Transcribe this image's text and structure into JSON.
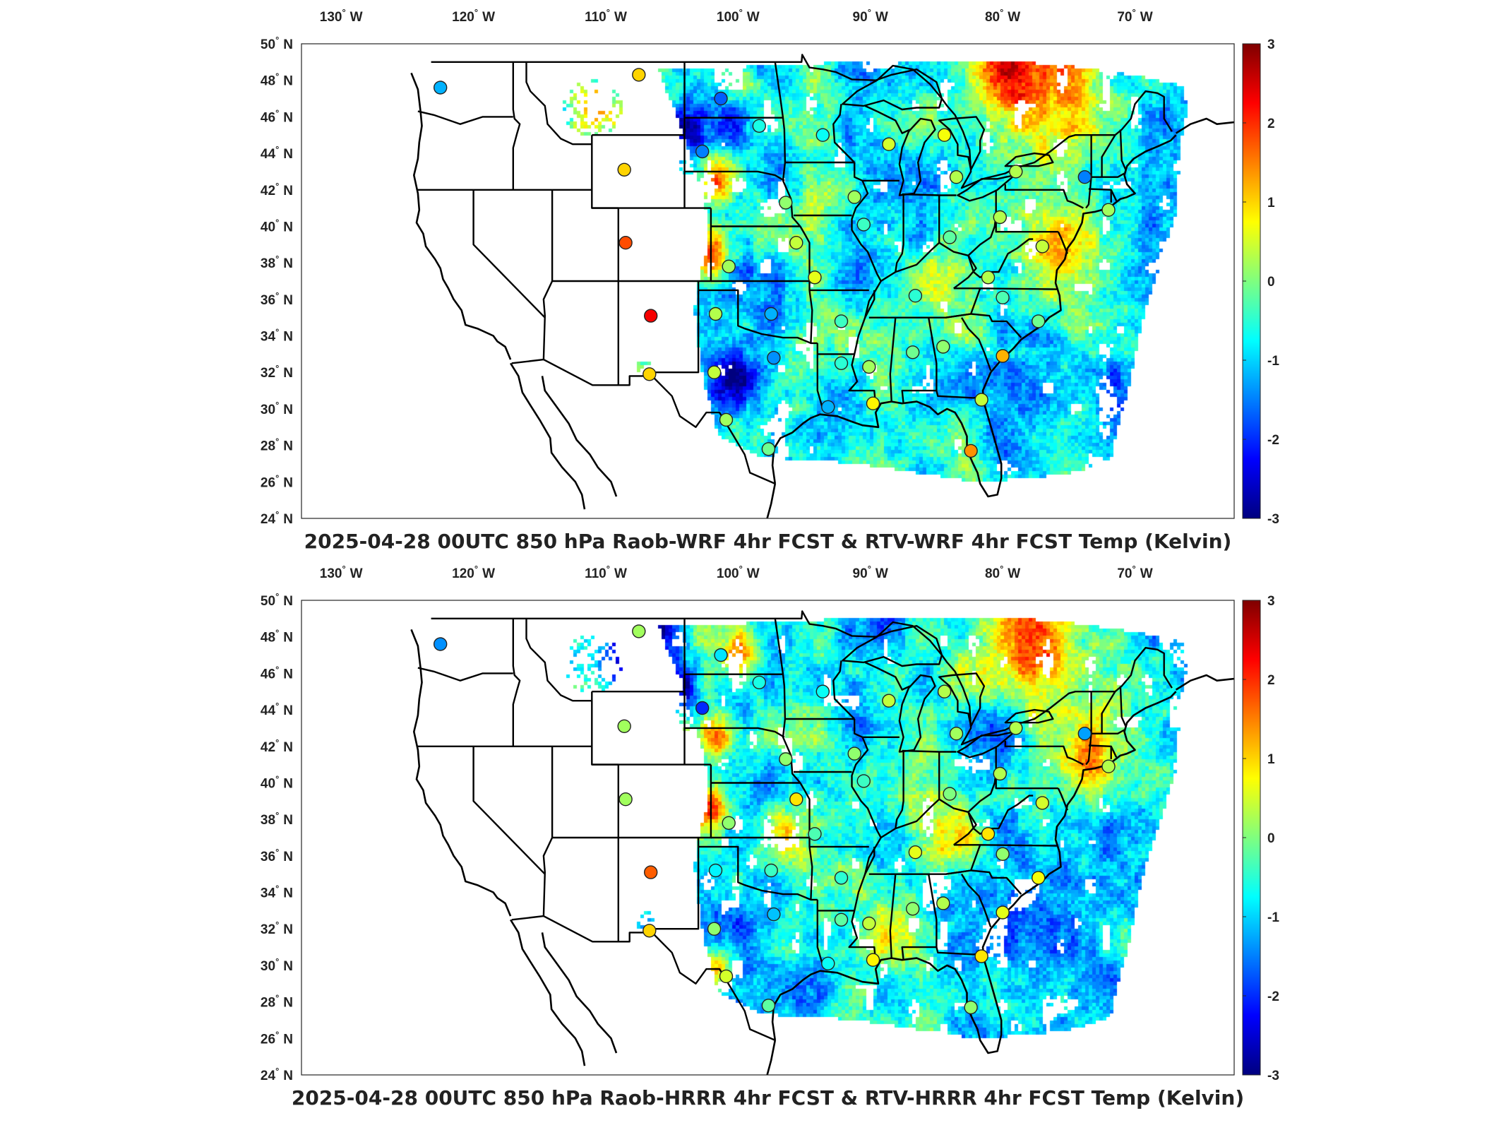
{
  "colors": {
    "scale": [
      "#00007f",
      "#0000ff",
      "#007fff",
      "#00ffff",
      "#7fff7f",
      "#ffff00",
      "#ff7f00",
      "#ff0000",
      "#7f0000"
    ],
    "background": "#ffffff",
    "borders": "#000000"
  },
  "axes": {
    "lon_labels": [
      "130",
      "120",
      "110",
      "100",
      "90",
      "80",
      "70"
    ],
    "lon_values": [
      -130,
      -120,
      -110,
      -100,
      -90,
      -80,
      -70
    ],
    "lon_hemisphere": "W",
    "lat_labels": [
      "50",
      "48",
      "46",
      "44",
      "42",
      "40",
      "38",
      "36",
      "34",
      "32",
      "30",
      "28",
      "26",
      "24"
    ],
    "lat_values": [
      50,
      48,
      46,
      44,
      42,
      40,
      38,
      36,
      34,
      32,
      30,
      28,
      26,
      24
    ],
    "lat_hemisphere": "N",
    "degree_symbol": "°"
  },
  "colorbar": {
    "min": -3,
    "max": 3,
    "ticks": [
      "3",
      "2",
      "1",
      "0",
      "-1",
      "-2",
      "-3"
    ],
    "tick_values": [
      3,
      2,
      1,
      0,
      -1,
      -2,
      -3
    ]
  },
  "panels": [
    {
      "title": "2025-04-28 00UTC 850 hPa Raob-WRF 4hr FCST & RTV-WRF 4hr FCST Temp (Kelvin)",
      "warm_regions": [
        {
          "lon": -78,
          "lat": 48.3,
          "r": 4.5,
          "v": 2.6
        },
        {
          "lon": -111,
          "lat": 46.5,
          "r": 1.6,
          "v": 2.0
        },
        {
          "lon": -102,
          "lat": 38.5,
          "r": 1.4,
          "v": 2.2
        },
        {
          "lon": -101.5,
          "lat": 42.5,
          "r": 1.2,
          "v": 1.8
        },
        {
          "lon": -100,
          "lat": 47.5,
          "r": 1.5,
          "v": 1.4
        },
        {
          "lon": -75,
          "lat": 38.2,
          "r": 2.5,
          "v": 1.0
        },
        {
          "lon": -84,
          "lat": 37.2,
          "r": 2.5,
          "v": 0.6
        },
        {
          "lon": -93.5,
          "lat": 40.5,
          "r": 3,
          "v": 0.3
        }
      ],
      "cool_regions": [
        {
          "lon": -101,
          "lat": 31.5,
          "r": 2.5,
          "v": -1.8
        },
        {
          "lon": -104,
          "lat": 45.3,
          "r": 1.4,
          "v": -2.4
        },
        {
          "lon": -100.5,
          "lat": 46.5,
          "r": 1.4,
          "v": -1.4
        },
        {
          "lon": -93,
          "lat": 29.2,
          "r": 2.2,
          "v": -1.6
        },
        {
          "lon": -75,
          "lat": 30,
          "r": 4.5,
          "v": -1.0
        },
        {
          "lon": -91,
          "lat": 44,
          "r": 2.5,
          "v": -1.0
        }
      ],
      "stations": [
        {
          "lon": -122.5,
          "lat": 47.6,
          "v": -1.2
        },
        {
          "lon": -107.5,
          "lat": 48.3,
          "v": 1.0
        },
        {
          "lon": -101.3,
          "lat": 47.0,
          "v": -1.7
        },
        {
          "lon": -98.4,
          "lat": 45.5,
          "v": -0.6
        },
        {
          "lon": -93.6,
          "lat": 45.0,
          "v": -0.7
        },
        {
          "lon": -102.7,
          "lat": 44.1,
          "v": -1.5
        },
        {
          "lon": -108.6,
          "lat": 43.1,
          "v": 1.0
        },
        {
          "lon": -108.5,
          "lat": 39.1,
          "v": 1.8
        },
        {
          "lon": -106.6,
          "lat": 35.1,
          "v": 2.3
        },
        {
          "lon": -106.7,
          "lat": 31.9,
          "v": 1.0
        },
        {
          "lon": -101.7,
          "lat": 35.2,
          "v": 0.3
        },
        {
          "lon": -101.8,
          "lat": 32.0,
          "v": 0.4
        },
        {
          "lon": -100.9,
          "lat": 29.4,
          "v": 0.2
        },
        {
          "lon": -97.7,
          "lat": 27.8,
          "v": -0.1
        },
        {
          "lon": -97.5,
          "lat": 35.2,
          "v": -1.2
        },
        {
          "lon": -97.3,
          "lat": 32.8,
          "v": -1.4
        },
        {
          "lon": -93.2,
          "lat": 30.1,
          "v": -1.2
        },
        {
          "lon": -92.2,
          "lat": 32.5,
          "v": -0.5
        },
        {
          "lon": -92.2,
          "lat": 34.8,
          "v": -0.4
        },
        {
          "lon": -89.8,
          "lat": 30.3,
          "v": 0.8
        },
        {
          "lon": -90.1,
          "lat": 32.3,
          "v": 0.2
        },
        {
          "lon": -86.8,
          "lat": 33.1,
          "v": -0.1
        },
        {
          "lon": -84.5,
          "lat": 33.4,
          "v": 0.1
        },
        {
          "lon": -81.6,
          "lat": 30.5,
          "v": 0.4
        },
        {
          "lon": -82.4,
          "lat": 27.7,
          "v": 1.4
        },
        {
          "lon": -80.0,
          "lat": 32.9,
          "v": 1.2
        },
        {
          "lon": -77.3,
          "lat": 34.8,
          "v": -0.1
        },
        {
          "lon": -80.0,
          "lat": 36.1,
          "v": -0.3
        },
        {
          "lon": -86.6,
          "lat": 36.2,
          "v": -0.5
        },
        {
          "lon": -81.1,
          "lat": 37.2,
          "v": 0.3
        },
        {
          "lon": -95.6,
          "lat": 39.1,
          "v": 0.4
        },
        {
          "lon": -100.7,
          "lat": 37.8,
          "v": 0.2
        },
        {
          "lon": -94.2,
          "lat": 37.2,
          "v": 0.6
        },
        {
          "lon": -90.5,
          "lat": 40.1,
          "v": -0.4
        },
        {
          "lon": -84.0,
          "lat": 39.4,
          "v": -0.2
        },
        {
          "lon": -80.2,
          "lat": 40.5,
          "v": 0.3
        },
        {
          "lon": -77.0,
          "lat": 38.9,
          "v": 0.4
        },
        {
          "lon": -91.2,
          "lat": 41.6,
          "v": 0.2
        },
        {
          "lon": -96.4,
          "lat": 41.3,
          "v": 0.1
        },
        {
          "lon": -88.6,
          "lat": 44.5,
          "v": 0.5
        },
        {
          "lon": -84.4,
          "lat": 45.0,
          "v": 0.7
        },
        {
          "lon": -83.5,
          "lat": 42.7,
          "v": 0.3
        },
        {
          "lon": -79.0,
          "lat": 43.0,
          "v": 0.3
        },
        {
          "lon": -73.8,
          "lat": 42.7,
          "v": -1.5
        },
        {
          "lon": -72.0,
          "lat": 40.9,
          "v": 0.2
        }
      ]
    },
    {
      "title": "2025-04-28 00UTC 850 hPa Raob-HRRR 4hr FCST & RTV-HRRR 4hr FCST Temp (Kelvin)",
      "warm_regions": [
        {
          "lon": -78,
          "lat": 48.3,
          "r": 4.5,
          "v": 2.6
        },
        {
          "lon": -100,
          "lat": 47.3,
          "r": 1.5,
          "v": 1.8
        },
        {
          "lon": -102,
          "lat": 38.5,
          "r": 1.4,
          "v": 2.0
        },
        {
          "lon": -101.5,
          "lat": 42.5,
          "r": 1.2,
          "v": 1.7
        },
        {
          "lon": -73,
          "lat": 41.5,
          "r": 2.2,
          "v": 1.3
        },
        {
          "lon": -101.5,
          "lat": 29.8,
          "r": 1.4,
          "v": 1.6
        },
        {
          "lon": -95.5,
          "lat": 37,
          "r": 2.5,
          "v": 0.8
        },
        {
          "lon": -84,
          "lat": 36.7,
          "r": 2.5,
          "v": 0.6
        },
        {
          "lon": -88,
          "lat": 31.8,
          "r": 2.5,
          "v": 0.5
        }
      ],
      "cool_regions": [
        {
          "lon": -107.5,
          "lat": 47.6,
          "r": 2.5,
          "v": -2.6
        },
        {
          "lon": -104,
          "lat": 45.3,
          "r": 1.4,
          "v": -2.3
        },
        {
          "lon": -99.5,
          "lat": 32,
          "r": 2.0,
          "v": -1.0
        },
        {
          "lon": -80,
          "lat": 42.5,
          "r": 2.5,
          "v": -1.2
        },
        {
          "lon": -75,
          "lat": 30,
          "r": 4.5,
          "v": -0.9
        },
        {
          "lon": -91,
          "lat": 44.5,
          "r": 2.5,
          "v": -0.9
        }
      ],
      "stations": [
        {
          "lon": -122.5,
          "lat": 47.6,
          "v": -1.4
        },
        {
          "lon": -107.5,
          "lat": 48.3,
          "v": 0.2
        },
        {
          "lon": -101.3,
          "lat": 47.0,
          "v": -0.9
        },
        {
          "lon": -98.4,
          "lat": 45.5,
          "v": -0.6
        },
        {
          "lon": -93.6,
          "lat": 45.0,
          "v": -0.7
        },
        {
          "lon": -102.7,
          "lat": 44.1,
          "v": -2.0
        },
        {
          "lon": -108.6,
          "lat": 43.1,
          "v": 0.2
        },
        {
          "lon": -108.5,
          "lat": 39.1,
          "v": 0.2
        },
        {
          "lon": -106.6,
          "lat": 35.1,
          "v": 1.7
        },
        {
          "lon": -106.7,
          "lat": 31.9,
          "v": 1.0
        },
        {
          "lon": -101.7,
          "lat": 35.2,
          "v": -0.8
        },
        {
          "lon": -101.8,
          "lat": 32.0,
          "v": 0.1
        },
        {
          "lon": -100.9,
          "lat": 29.4,
          "v": 0.5
        },
        {
          "lon": -97.7,
          "lat": 27.8,
          "v": -0.2
        },
        {
          "lon": -97.5,
          "lat": 35.2,
          "v": -0.4
        },
        {
          "lon": -97.3,
          "lat": 32.8,
          "v": -1.1
        },
        {
          "lon": -93.2,
          "lat": 30.1,
          "v": -0.7
        },
        {
          "lon": -92.2,
          "lat": 32.5,
          "v": -0.2
        },
        {
          "lon": -92.2,
          "lat": 34.8,
          "v": -0.5
        },
        {
          "lon": -89.8,
          "lat": 30.3,
          "v": 0.8
        },
        {
          "lon": -90.1,
          "lat": 32.3,
          "v": 0.4
        },
        {
          "lon": -86.8,
          "lat": 33.1,
          "v": 0.1
        },
        {
          "lon": -84.5,
          "lat": 33.4,
          "v": 0.3
        },
        {
          "lon": -81.6,
          "lat": 30.5,
          "v": 0.9
        },
        {
          "lon": -82.4,
          "lat": 27.7,
          "v": 0.1
        },
        {
          "lon": -80.0,
          "lat": 32.9,
          "v": 0.6
        },
        {
          "lon": -77.3,
          "lat": 34.8,
          "v": 0.7
        },
        {
          "lon": -80.0,
          "lat": 36.1,
          "v": 0.1
        },
        {
          "lon": -86.6,
          "lat": 36.2,
          "v": 0.6
        },
        {
          "lon": -81.1,
          "lat": 37.2,
          "v": 0.9
        },
        {
          "lon": -95.6,
          "lat": 39.1,
          "v": 0.9
        },
        {
          "lon": -100.7,
          "lat": 37.8,
          "v": 0.1
        },
        {
          "lon": -94.2,
          "lat": 37.2,
          "v": -0.3
        },
        {
          "lon": -90.5,
          "lat": 40.1,
          "v": -0.4
        },
        {
          "lon": -84.0,
          "lat": 39.4,
          "v": 0.0
        },
        {
          "lon": -80.2,
          "lat": 40.5,
          "v": 0.3
        },
        {
          "lon": -77.0,
          "lat": 38.9,
          "v": 0.5
        },
        {
          "lon": -91.2,
          "lat": 41.6,
          "v": 0.1
        },
        {
          "lon": -96.4,
          "lat": 41.3,
          "v": 0.1
        },
        {
          "lon": -88.6,
          "lat": 44.5,
          "v": 0.4
        },
        {
          "lon": -84.4,
          "lat": 45.0,
          "v": 0.3
        },
        {
          "lon": -83.5,
          "lat": 42.7,
          "v": 0.2
        },
        {
          "lon": -79.0,
          "lat": 43.0,
          "v": 0.3
        },
        {
          "lon": -73.8,
          "lat": 42.7,
          "v": -1.3
        },
        {
          "lon": -72.0,
          "lat": 40.9,
          "v": 0.3
        }
      ]
    }
  ]
}
